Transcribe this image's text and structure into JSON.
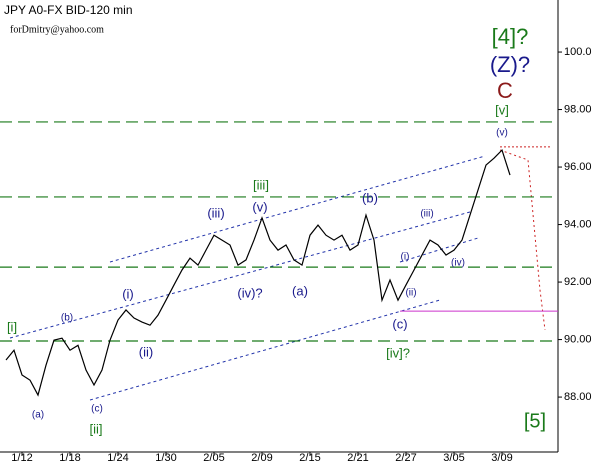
{
  "chart_data": {
    "type": "line",
    "title": "JPY A0-FX BID-120 min",
    "subtitle": "forDmitry@yahoo.com",
    "categories": [
      null,
      null,
      "1/12",
      null,
      null,
      null,
      null,
      null,
      "1/18",
      null,
      null,
      null,
      null,
      null,
      "1/24",
      null,
      null,
      null,
      null,
      null,
      "1/30",
      null,
      null,
      null,
      null,
      null,
      "2/05",
      null,
      null,
      null,
      null,
      null,
      "2/09",
      null,
      null,
      null,
      null,
      null,
      "2/15",
      null,
      null,
      null,
      null,
      null,
      "2/21",
      null,
      null,
      null,
      null,
      null,
      "2/27",
      null,
      null,
      null,
      null,
      null,
      "3/05",
      null,
      null,
      null,
      null,
      null,
      "3/09",
      null
    ],
    "values": [
      89.29,
      89.63,
      88.77,
      88.59,
      88.07,
      89.11,
      89.98,
      90.05,
      89.63,
      89.8,
      88.94,
      88.42,
      88.94,
      89.98,
      90.68,
      91.03,
      90.75,
      90.61,
      90.5,
      90.85,
      91.37,
      91.9,
      92.42,
      92.83,
      92.59,
      93.11,
      93.63,
      93.46,
      93.29,
      92.59,
      92.77,
      93.46,
      94.23,
      93.46,
      93.11,
      93.29,
      92.77,
      92.59,
      93.63,
      93.98,
      93.63,
      93.46,
      93.63,
      93.11,
      93.29,
      94.33,
      93.46,
      91.37,
      92.07,
      91.37,
      91.9,
      92.42,
      92.94,
      93.46,
      93.29,
      92.94,
      93.11,
      93.46,
      94.33,
      95.2,
      96.07,
      96.31,
      96.59,
      95.72
    ],
    "color": "#000000",
    "ylim": [
      86.09,
      101.81
    ],
    "yticks": [
      {
        "value": 88,
        "label": "88.00"
      },
      {
        "value": 90,
        "label": "90.00"
      },
      {
        "value": 92,
        "label": "92.00"
      },
      {
        "value": 94,
        "label": "94.00"
      },
      {
        "value": 96,
        "label": "96.00"
      },
      {
        "value": 98,
        "label": "98.00"
      },
      {
        "value": 100,
        "label": "100.0"
      }
    ],
    "levels": [
      97.57,
      94.96,
      92.52,
      89.95
    ],
    "level_color": "#1a7a1a",
    "support_level": 90.99,
    "support_color": "#cc33cc",
    "target_level": 96.7,
    "target_color": "#cc2222",
    "annotations": [
      {
        "text": "[4]?",
        "color": "#1a7a1a"
      },
      {
        "text": "(Z)?",
        "color": "#1a1a8c"
      },
      {
        "text": "C",
        "color": "#8b1a1a"
      },
      {
        "text": "[v]",
        "color": "#1a7a1a"
      },
      {
        "text": "(v)",
        "color": "#1a1a8c"
      },
      {
        "text": "[iii]",
        "color": "#1a7a1a"
      },
      {
        "text": "(iii)",
        "color": "#1a1a8c"
      },
      {
        "text": "(v)",
        "color": "#1a1a8c"
      },
      {
        "text": "(b)",
        "color": "#1a1a8c"
      },
      {
        "text": "(iii)",
        "color": "#1a1a8c"
      },
      {
        "text": "(i)",
        "color": "#1a1a8c"
      },
      {
        "text": "(ii)",
        "color": "#1a1a8c"
      },
      {
        "text": "(iv)",
        "color": "#1a1a8c"
      },
      {
        "text": "(iv)?",
        "color": "#1a1a8c"
      },
      {
        "text": "(a)",
        "color": "#1a1a8c"
      },
      {
        "text": "(c)",
        "color": "#1a1a8c"
      },
      {
        "text": "[iv]?",
        "color": "#1a7a1a"
      },
      {
        "text": "(i)",
        "color": "#1a1a8c"
      },
      {
        "text": "(ii)",
        "color": "#1a1a8c"
      },
      {
        "text": "[i]",
        "color": "#1a7a1a"
      },
      {
        "text": "(b)",
        "color": "#1a1a8c"
      },
      {
        "text": "(a)",
        "color": "#1a1a8c"
      },
      {
        "text": "(c)",
        "color": "#1a1a8c"
      },
      {
        "text": "[ii]",
        "color": "#1a7a1a"
      },
      {
        "text": "[5]",
        "color": "#1a7a1a"
      }
    ]
  }
}
